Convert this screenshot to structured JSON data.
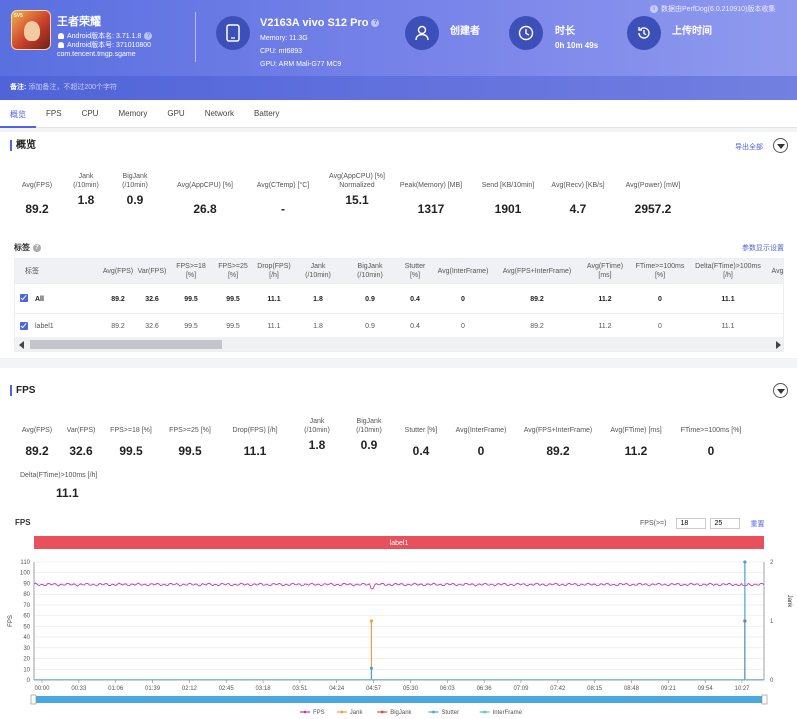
{
  "header": {
    "app_name": "王者荣耀",
    "app_badge": "5V5",
    "android_version": "Android版本名: 3.71.1.8",
    "android_code": "Android版本号: 371010800",
    "package": "com.tencent.tmgp.sgame",
    "device_name": "V2163A vivo S12 Pro",
    "memory": "Memory: 11.3G",
    "cpu": "CPU: mt6893",
    "gpu": "GPU: ARM Mali-G77 MC9",
    "creator_label": "创建者",
    "duration_label": "时长",
    "duration_value": "0h 10m 49s",
    "upload_label": "上传时间",
    "data_source": "数据由PerfDog(6.0.210910)版本收集",
    "note_label": "备注:",
    "note_placeholder": "添加备注，不超过200个字符"
  },
  "tabs": [
    "概览",
    "FPS",
    "CPU",
    "Memory",
    "GPU",
    "Network",
    "Battery"
  ],
  "overview": {
    "title": "概览",
    "export_label": "导出全部",
    "metrics": [
      {
        "label": "Avg(FPS)",
        "value": "89.2"
      },
      {
        "label": "Jank\n(/10min)",
        "value": "1.8"
      },
      {
        "label": "BigJank\n(/10min)",
        "value": "0.9"
      },
      {
        "label": "Avg(AppCPU) [%]",
        "value": "26.8"
      },
      {
        "label": "Avg(CTemp) [°C]",
        "value": "-"
      },
      {
        "label": "Avg(AppCPU) [%]\nNormalized",
        "value": "15.1"
      },
      {
        "label": "Peak(Memory) [MB]",
        "value": "1317"
      },
      {
        "label": "Send [KB/10min]",
        "value": "1901"
      },
      {
        "label": "Avg(Recv) [KB/s]",
        "value": "4.7"
      },
      {
        "label": "Avg(Power) [mW]",
        "value": "2957.2"
      }
    ],
    "tags_title": "标签",
    "params_link": "参数显示设置",
    "table": {
      "headers": [
        "标签",
        "Avg(FPS)",
        "Var(FPS)",
        "FPS>=18\n[%]",
        "FPS>=25\n[%]",
        "Drop(FPS)\n[/h]",
        "Jank\n(/10min)",
        "BigJank\n(/10min)",
        "Stutter\n[%]",
        "Avg(InterFrame)",
        "Avg(FPS+InterFrame)",
        "Avg(FTime)\n[ms]",
        "FTime>=100ms\n[%]",
        "Delta(FTime)>100ms\n[/h]",
        "Avg(A"
      ],
      "rows": [
        [
          "All",
          "89.2",
          "32.6",
          "99.5",
          "99.5",
          "11.1",
          "1.8",
          "0.9",
          "0.4",
          "0",
          "89.2",
          "11.2",
          "0",
          "11.1",
          ""
        ],
        [
          "label1",
          "89.2",
          "32.6",
          "99.5",
          "99.5",
          "11.1",
          "1.8",
          "0.9",
          "0.4",
          "0",
          "89.2",
          "11.2",
          "0",
          "11.1",
          ""
        ]
      ]
    }
  },
  "fps_section": {
    "title": "FPS",
    "metrics": [
      {
        "label": "Avg(FPS)",
        "value": "89.2"
      },
      {
        "label": "Var(FPS)",
        "value": "32.6"
      },
      {
        "label": "FPS>=18 [%]",
        "value": "99.5"
      },
      {
        "label": "FPS>=25 [%]",
        "value": "99.5"
      },
      {
        "label": "Drop(FPS) [/h]",
        "value": "11.1"
      },
      {
        "label": "Jank\n(/10min)",
        "value": "1.8"
      },
      {
        "label": "BigJank\n(/10min)",
        "value": "0.9"
      },
      {
        "label": "Stutter [%]",
        "value": "0.4"
      },
      {
        "label": "Avg(InterFrame)",
        "value": "0"
      },
      {
        "label": "Avg(FPS+InterFrame)",
        "value": "89.2"
      },
      {
        "label": "Avg(FTime) [ms]",
        "value": "11.2"
      },
      {
        "label": "FTime>=100ms [%]",
        "value": "0"
      },
      {
        "label": "Delta(FTime)>100ms [/h]",
        "value": "11.1"
      }
    ],
    "chart_title": "FPS",
    "fps_threshold_label": "FPS(>=)",
    "fps_threshold_1": "18",
    "fps_threshold_2": "25",
    "reset_label": "重置"
  },
  "chart_data": {
    "type": "line",
    "label_band": "label1",
    "ylabel": "FPS",
    "y2label": "Jank",
    "ylim": [
      0,
      110
    ],
    "y2lim": [
      0,
      2
    ],
    "yticks": [
      0,
      10,
      20,
      30,
      40,
      50,
      60,
      70,
      80,
      90,
      100,
      110
    ],
    "y2ticks": [
      0,
      1,
      2
    ],
    "xticks": [
      "00:00",
      "00:33",
      "01:06",
      "01:39",
      "02:12",
      "02:45",
      "03:18",
      "03:51",
      "04:24",
      "04:57",
      "05:30",
      "06:03",
      "06:36",
      "07:09",
      "07:42",
      "08:15",
      "08:48",
      "09:21",
      "09:54",
      "10:27"
    ],
    "x_range_seconds": [
      0,
      649
    ],
    "series": [
      {
        "name": "FPS",
        "color": "#c23ab8",
        "baseline": 89,
        "dips": [
          [
            300,
            85
          ],
          [
            632,
            88
          ]
        ]
      },
      {
        "name": "Jank",
        "color": "#f39c4a",
        "spikes": [
          [
            300,
            1.0
          ]
        ]
      },
      {
        "name": "BigJank",
        "color": "#e0433f",
        "spikes": [
          [
            632,
            1.0
          ]
        ]
      },
      {
        "name": "Stutter",
        "color": "#4aa3d8",
        "spikes": [
          [
            300,
            0.2
          ],
          [
            632,
            2.0
          ]
        ]
      },
      {
        "name": "InterFrame",
        "color": "#5bc2c0",
        "values": [
          0
        ]
      }
    ],
    "legend": "bottom-center",
    "grid": true
  }
}
